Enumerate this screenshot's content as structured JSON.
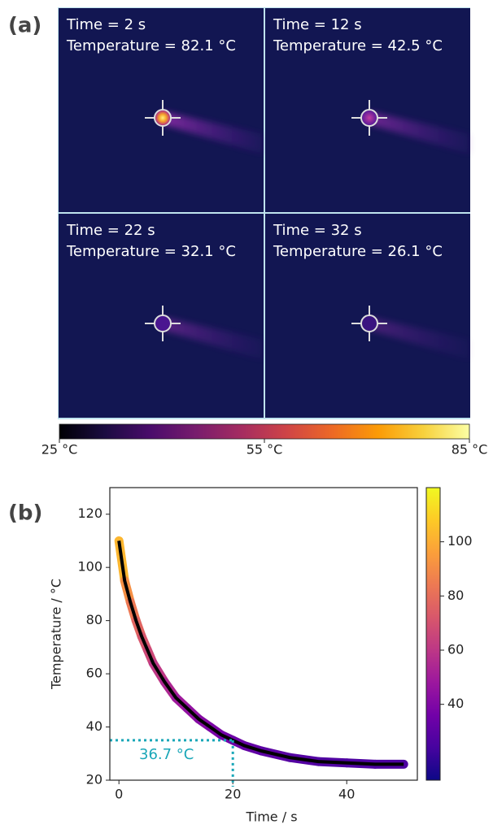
{
  "panel_a": {
    "label": "(a)",
    "images": [
      {
        "time": "Time  = 2 s",
        "temperature": "Temperature = 82.1 °C"
      },
      {
        "time": "Time  = 12 s",
        "temperature": "Temperature = 42.5 °C"
      },
      {
        "time": "Time  = 22 s",
        "temperature": "Temperature = 32.1 °C"
      },
      {
        "time": "Time  = 32 s",
        "temperature": "Temperature = 26.1 °C"
      }
    ],
    "colorbar": {
      "lim": [
        25,
        85
      ],
      "ticks": [
        {
          "value": 25,
          "label": "25 °C"
        },
        {
          "value": 55,
          "label": "55 °C"
        },
        {
          "value": 85,
          "label": "85 °C"
        }
      ]
    }
  },
  "chart_data": {
    "type": "line",
    "label": "(b)",
    "x_label": "Time / s",
    "y_label": "Temperature / °C",
    "x": [
      0,
      1,
      2,
      3,
      4,
      5,
      6,
      8,
      10,
      12,
      14,
      16,
      18,
      20,
      22,
      25,
      30,
      35,
      40,
      45,
      50
    ],
    "series": [
      {
        "color": "#000000",
        "values": [
          110,
          95,
          87,
          80,
          74,
          69,
          64,
          57,
          51,
          47,
          43,
          40,
          37,
          35,
          33,
          31,
          28.5,
          27,
          26.5,
          26,
          26
        ]
      }
    ],
    "xlim": [
      -1.6,
      52.4
    ],
    "ylim": [
      20,
      130
    ],
    "xticks": [
      0,
      20,
      40
    ],
    "yticks": [
      20,
      40,
      60,
      80,
      100,
      120
    ],
    "colorbar": {
      "lim": [
        12,
        120
      ],
      "ticks": [
        40,
        60,
        80,
        100
      ]
    },
    "annotation": {
      "text": "36.7 °C",
      "x": 20,
      "y": 35,
      "color": "#1aa7b8"
    }
  }
}
